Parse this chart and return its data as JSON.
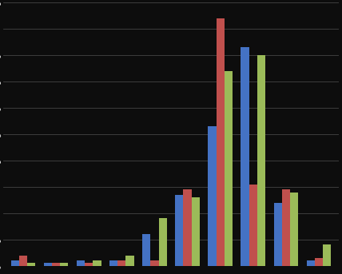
{
  "blue_vals": [
    0.01,
    0.005,
    0.01,
    0.01,
    0.06,
    0.135,
    0.265,
    0.415,
    0.12,
    0.01
  ],
  "red_vals": [
    0.02,
    0.005,
    0.005,
    0.01,
    0.01,
    0.145,
    0.47,
    0.155,
    0.145,
    0.015
  ],
  "green_vals": [
    0.005,
    0.005,
    0.01,
    0.02,
    0.09,
    0.13,
    0.37,
    0.4,
    0.14,
    0.04
  ],
  "colors": [
    "#4472C4",
    "#C0504D",
    "#9BBB59"
  ],
  "ylim": [
    0,
    0.5
  ],
  "yticks": [
    0.0,
    0.05,
    0.1,
    0.15,
    0.2,
    0.25,
    0.3,
    0.35,
    0.4,
    0.45,
    0.5
  ],
  "background_color": "#0d0d0d",
  "grid_color": "#444444",
  "bar_width": 0.25,
  "n_groups": 10
}
